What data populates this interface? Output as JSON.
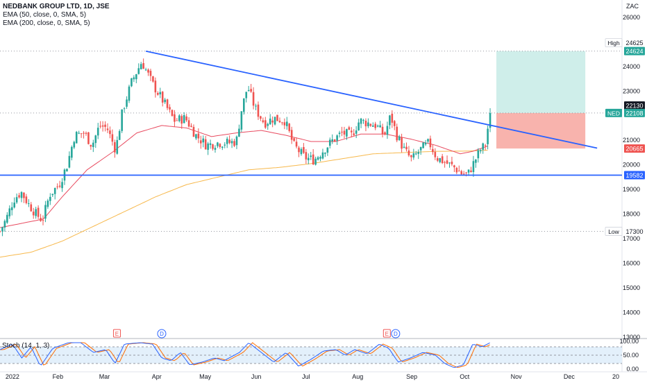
{
  "legend": {
    "symbol_line": "NEDBANK GROUP LTD, 1D, JSE",
    "ema50_line": "EMA (50, close, 0, SMA, 5)",
    "ema200_line": "EMA (200, close, 0, SMA, 5)"
  },
  "currency": "ZAC",
  "stoch_label": "Stoch (14, 1, 3)",
  "colors": {
    "up": "#26a69a",
    "down": "#ef5350",
    "ema50": "#e84a5f",
    "ema200": "#f7b84b",
    "trendline": "#2962ff",
    "target": "#cfeeea",
    "stop": "#f8b3ad",
    "stoch_k": "#2962ff",
    "stoch_d": "#ff6d00"
  },
  "chart_data": {
    "type": "candlestick",
    "ylim": [
      13000,
      26700
    ],
    "x_ticks": [
      "2022",
      "Feb",
      "Mar",
      "Apr",
      "May",
      "Jun",
      "Jul",
      "Aug",
      "Sep",
      "Oct",
      "Nov",
      "Dec",
      "20"
    ],
    "y_ticks": [
      "26000",
      "24000",
      "23000",
      "21000",
      "20000",
      "19000",
      "18000",
      "17000",
      "16000",
      "15000",
      "14000",
      "13000"
    ],
    "stoch_ticks": [
      "100.00",
      "50.00",
      "0.00"
    ],
    "price_labels": [
      {
        "tag": "High",
        "value": "24625"
      },
      {
        "value": "24624"
      },
      {
        "value": "22130"
      },
      {
        "tag": "NED",
        "value": "22108"
      },
      {
        "value": "20665"
      },
      {
        "value": "19582"
      },
      {
        "tag": "Low",
        "value": "17300"
      }
    ],
    "levels": {
      "high": 24625,
      "target": 24624,
      "entry": 22108,
      "stop": 20665,
      "support": 19582,
      "low": 17300
    },
    "trendline": [
      [
        0.2345,
        24620
      ],
      [
        0.96,
        20680
      ]
    ],
    "event_markers": [
      {
        "label": "E",
        "t": 0.188,
        "color": "#ef5350"
      },
      {
        "label": "D",
        "t": 0.26,
        "color": "#2962ff"
      },
      {
        "label": "E",
        "t": 0.622,
        "color": "#ef5350"
      },
      {
        "label": "D",
        "t": 0.636,
        "color": "#2962ff"
      }
    ],
    "price_anchors": [
      [
        0.0,
        17300
      ],
      [
        0.01,
        17800
      ],
      [
        0.022,
        18600
      ],
      [
        0.034,
        18900
      ],
      [
        0.046,
        18400
      ],
      [
        0.058,
        18000
      ],
      [
        0.068,
        17750
      ],
      [
        0.08,
        18800
      ],
      [
        0.095,
        19200
      ],
      [
        0.108,
        20000
      ],
      [
        0.12,
        21200
      ],
      [
        0.135,
        21300
      ],
      [
        0.148,
        20800
      ],
      [
        0.16,
        21600
      ],
      [
        0.172,
        21500
      ],
      [
        0.186,
        20600
      ],
      [
        0.197,
        22200
      ],
      [
        0.212,
        23400
      ],
      [
        0.228,
        24200
      ],
      [
        0.245,
        23300
      ],
      [
        0.262,
        22600
      ],
      [
        0.28,
        21800
      ],
      [
        0.298,
        21900
      ],
      [
        0.315,
        21200
      ],
      [
        0.332,
        20800
      ],
      [
        0.35,
        20900
      ],
      [
        0.368,
        20900
      ],
      [
        0.38,
        20950
      ],
      [
        0.388,
        22200
      ],
      [
        0.398,
        23200
      ],
      [
        0.41,
        22300
      ],
      [
        0.425,
        21700
      ],
      [
        0.44,
        21900
      ],
      [
        0.458,
        21800
      ],
      [
        0.472,
        20800
      ],
      [
        0.49,
        20300
      ],
      [
        0.505,
        20200
      ],
      [
        0.52,
        20600
      ],
      [
        0.535,
        21000
      ],
      [
        0.55,
        21300
      ],
      [
        0.565,
        21200
      ],
      [
        0.578,
        21800
      ],
      [
        0.592,
        21700
      ],
      [
        0.605,
        21600
      ],
      [
        0.618,
        21200
      ],
      [
        0.628,
        22000
      ],
      [
        0.638,
        21200
      ],
      [
        0.65,
        20600
      ],
      [
        0.662,
        20200
      ],
      [
        0.675,
        20600
      ],
      [
        0.69,
        20900
      ],
      [
        0.702,
        20300
      ],
      [
        0.716,
        20100
      ],
      [
        0.73,
        19900
      ],
      [
        0.742,
        19650
      ],
      [
        0.752,
        19600
      ],
      [
        0.762,
        20100
      ],
      [
        0.772,
        20600
      ],
      [
        0.78,
        20800
      ],
      [
        0.788,
        22108
      ]
    ],
    "ema50_anchors": [
      [
        0.0,
        17450
      ],
      [
        0.05,
        17700
      ],
      [
        0.07,
        17800
      ],
      [
        0.1,
        18700
      ],
      [
        0.14,
        19800
      ],
      [
        0.18,
        20500
      ],
      [
        0.22,
        21300
      ],
      [
        0.26,
        21600
      ],
      [
        0.3,
        21500
      ],
      [
        0.34,
        21150
      ],
      [
        0.38,
        21300
      ],
      [
        0.42,
        21400
      ],
      [
        0.46,
        21200
      ],
      [
        0.5,
        20950
      ],
      [
        0.54,
        20950
      ],
      [
        0.58,
        21250
      ],
      [
        0.62,
        21250
      ],
      [
        0.66,
        21050
      ],
      [
        0.7,
        20800
      ],
      [
        0.74,
        20450
      ],
      [
        0.76,
        20550
      ],
      [
        0.788,
        20800
      ]
    ],
    "ema200_anchors": [
      [
        0.0,
        16250
      ],
      [
        0.05,
        16450
      ],
      [
        0.1,
        16900
      ],
      [
        0.15,
        17500
      ],
      [
        0.2,
        18100
      ],
      [
        0.25,
        18700
      ],
      [
        0.3,
        19200
      ],
      [
        0.35,
        19500
      ],
      [
        0.4,
        19800
      ],
      [
        0.45,
        19900
      ],
      [
        0.5,
        20050
      ],
      [
        0.55,
        20250
      ],
      [
        0.6,
        20450
      ],
      [
        0.65,
        20500
      ],
      [
        0.7,
        20550
      ],
      [
        0.75,
        20560
      ],
      [
        0.788,
        20600
      ]
    ],
    "stoch_k_anchors": [
      [
        0.0,
        70
      ],
      [
        0.02,
        90
      ],
      [
        0.035,
        40
      ],
      [
        0.05,
        80
      ],
      [
        0.065,
        10
      ],
      [
        0.085,
        75
      ],
      [
        0.11,
        95
      ],
      [
        0.13,
        95
      ],
      [
        0.15,
        60
      ],
      [
        0.17,
        70
      ],
      [
        0.185,
        20
      ],
      [
        0.2,
        90
      ],
      [
        0.225,
        95
      ],
      [
        0.245,
        90
      ],
      [
        0.26,
        40
      ],
      [
        0.275,
        30
      ],
      [
        0.29,
        60
      ],
      [
        0.305,
        15
      ],
      [
        0.325,
        25
      ],
      [
        0.345,
        40
      ],
      [
        0.36,
        30
      ],
      [
        0.385,
        60
      ],
      [
        0.4,
        95
      ],
      [
        0.42,
        60
      ],
      [
        0.44,
        25
      ],
      [
        0.46,
        60
      ],
      [
        0.48,
        10
      ],
      [
        0.5,
        35
      ],
      [
        0.52,
        65
      ],
      [
        0.54,
        70
      ],
      [
        0.555,
        50
      ],
      [
        0.57,
        70
      ],
      [
        0.59,
        55
      ],
      [
        0.61,
        90
      ],
      [
        0.625,
        75
      ],
      [
        0.64,
        25
      ],
      [
        0.66,
        40
      ],
      [
        0.68,
        60
      ],
      [
        0.7,
        50
      ],
      [
        0.715,
        20
      ],
      [
        0.73,
        5
      ],
      [
        0.745,
        15
      ],
      [
        0.76,
        90
      ],
      [
        0.775,
        80
      ],
      [
        0.788,
        95
      ]
    ]
  }
}
